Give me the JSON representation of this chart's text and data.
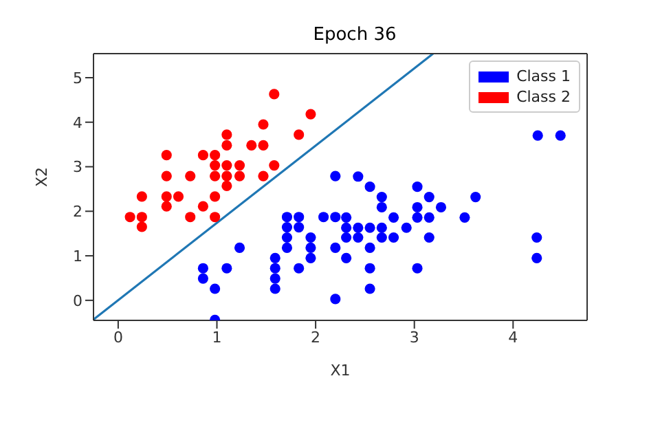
{
  "chart_data": {
    "type": "scatter",
    "title": "Epoch 36",
    "xlabel": "X1",
    "ylabel": "X2",
    "xlim": [
      -0.25,
      4.75
    ],
    "ylim": [
      -0.45,
      5.54
    ],
    "xticks": [
      0,
      1,
      2,
      3,
      4
    ],
    "yticks": [
      0,
      1,
      2,
      3,
      4,
      5
    ],
    "grid": false,
    "legend": "top right",
    "marker": "circle",
    "series": [
      {
        "name": "Class 1",
        "color": "#0000ff",
        "x": [
          2.2,
          1.71,
          1.83,
          2.08,
          2.2,
          1.71,
          1.83,
          1.71,
          1.95,
          1.95,
          1.71,
          2.2,
          1.23,
          1.95,
          1.59,
          0.86,
          1.1,
          1.59,
          1.83,
          0.86,
          1.59,
          0.98,
          1.59,
          2.2,
          0.98,
          2.43,
          2.55,
          2.67,
          2.67,
          3.03,
          3.15,
          3.03,
          3.27,
          3.62,
          2.79,
          3.03,
          3.15,
          3.51,
          2.43,
          2.55,
          2.67,
          2.92,
          2.43,
          2.67,
          2.79,
          3.15,
          2.55,
          2.31,
          2.55,
          3.03,
          2.55,
          2.31,
          2.31,
          2.31,
          4.24,
          4.24,
          4.25,
          4.48
        ],
        "values": [
          2.79,
          1.87,
          1.87,
          1.87,
          1.87,
          1.64,
          1.64,
          1.41,
          1.41,
          1.18,
          1.18,
          1.18,
          1.18,
          0.95,
          0.95,
          0.72,
          0.72,
          0.72,
          0.72,
          0.49,
          0.49,
          0.26,
          0.26,
          0.03,
          -0.44,
          2.78,
          2.55,
          2.32,
          2.09,
          2.55,
          2.32,
          2.09,
          2.09,
          2.32,
          1.86,
          1.86,
          1.86,
          1.86,
          1.63,
          1.63,
          1.63,
          1.63,
          1.41,
          1.41,
          1.41,
          1.41,
          1.18,
          0.95,
          0.72,
          0.72,
          0.26,
          1.86,
          1.63,
          1.41,
          1.41,
          0.95,
          3.7,
          3.7
        ]
      },
      {
        "name": "Class 2",
        "color": "#ff0000",
        "x": [
          1.58,
          1.95,
          1.47,
          1.83,
          1.1,
          1.1,
          1.35,
          1.47,
          0.49,
          0.86,
          0.98,
          0.98,
          1.1,
          1.23,
          1.58,
          0.49,
          0.73,
          0.98,
          1.1,
          1.23,
          1.47,
          1.1,
          0.24,
          0.49,
          0.61,
          0.98,
          0.49,
          0.86,
          0.12,
          0.24,
          0.73,
          0.98,
          0.24
        ],
        "values": [
          4.63,
          4.18,
          3.95,
          3.72,
          3.72,
          3.48,
          3.48,
          3.48,
          3.26,
          3.26,
          3.26,
          3.03,
          3.03,
          3.03,
          3.03,
          2.79,
          2.79,
          2.79,
          2.79,
          2.79,
          2.79,
          2.57,
          2.33,
          2.33,
          2.33,
          2.33,
          2.11,
          2.11,
          1.87,
          1.87,
          1.87,
          1.87,
          1.65
        ]
      },
      {
        "type": "line",
        "marker": "none",
        "color": "#1f77b4",
        "x": [
          -0.25,
          3.19
        ],
        "values": [
          -0.43,
          5.54
        ]
      }
    ]
  }
}
